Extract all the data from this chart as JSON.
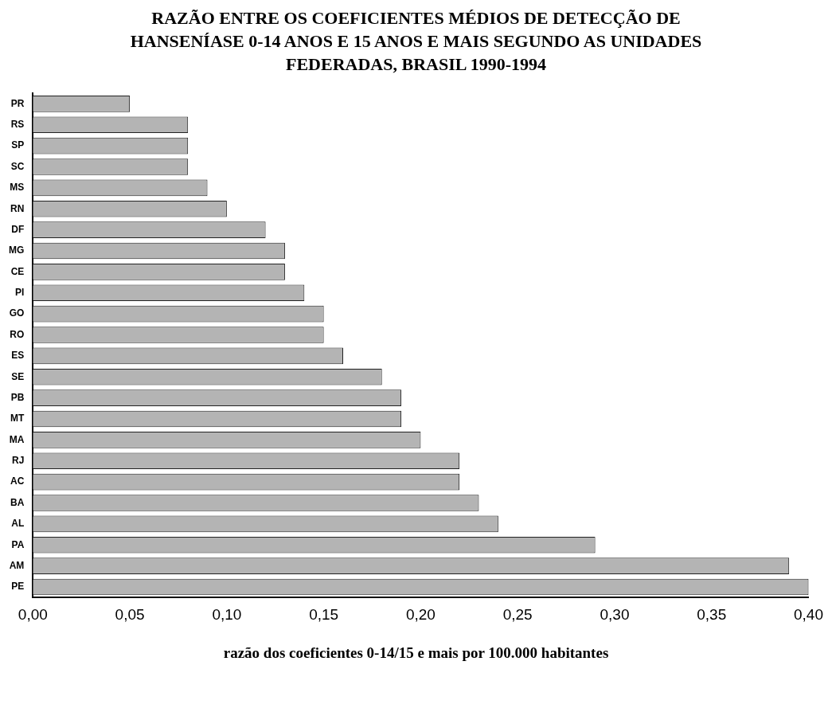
{
  "chart_data": {
    "type": "bar",
    "orientation": "horizontal",
    "title": "RAZÃO ENTRE OS COEFICIENTES MÉDIOS DE DETECÇÃO DE HANSENÍASE  0-14 ANOS E 15 ANOS E MAIS SEGUNDO AS UNIDADES FEDERADAS, BRASIL 1990-1994",
    "xlabel": "razão dos coeficientes 0-14/15 e mais por 100.000 habitantes",
    "categories": [
      "PR",
      "RS",
      "SP",
      "SC",
      "MS",
      "RN",
      "DF",
      "MG",
      "CE",
      "PI",
      "GO",
      "RO",
      "ES",
      "SE",
      "PB",
      "MT",
      "MA",
      "RJ",
      "AC",
      "BA",
      "AL",
      "PA",
      "AM",
      "PE"
    ],
    "values": [
      0.05,
      0.08,
      0.08,
      0.08,
      0.09,
      0.1,
      0.12,
      0.13,
      0.13,
      0.14,
      0.15,
      0.15,
      0.16,
      0.18,
      0.19,
      0.19,
      0.2,
      0.22,
      0.22,
      0.23,
      0.24,
      0.29,
      0.39,
      0.4
    ],
    "color": "#b4b4b4",
    "xlim": [
      0,
      0.4
    ],
    "xticks": [
      {
        "value": 0,
        "label": "0,00"
      },
      {
        "value": 0.05,
        "label": "0,05"
      },
      {
        "value": 0.1,
        "label": "0,10"
      },
      {
        "value": 0.15,
        "label": "0,15"
      },
      {
        "value": 0.2,
        "label": "0,20"
      },
      {
        "value": 0.25,
        "label": "0,25"
      },
      {
        "value": 0.3,
        "label": "0,30"
      },
      {
        "value": 0.35,
        "label": "0,35"
      },
      {
        "value": 0.4,
        "label": "0,40"
      }
    ],
    "grid": false
  }
}
